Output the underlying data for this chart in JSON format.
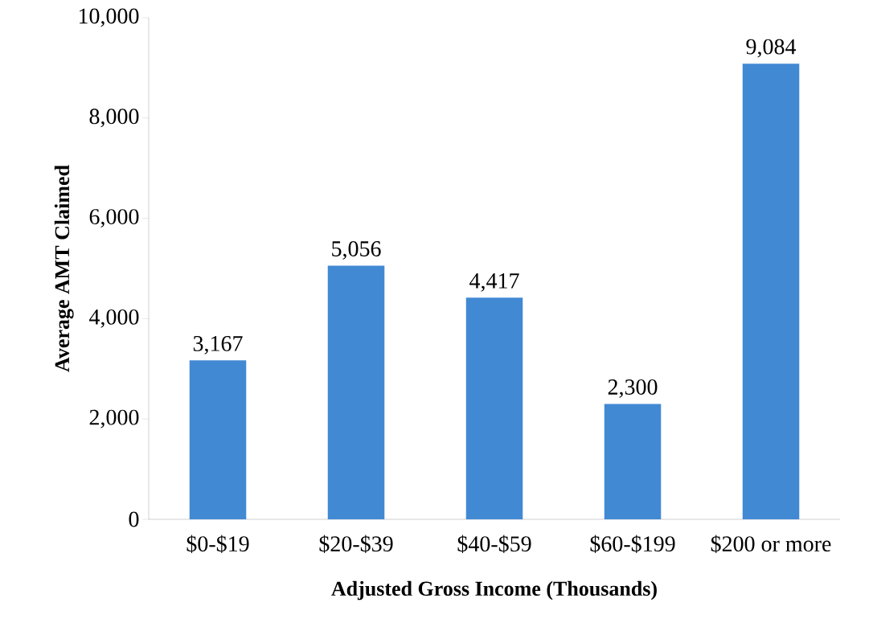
{
  "chart_data": {
    "type": "bar",
    "xlabel": "Adjusted Gross Income (Thousands)",
    "ylabel": "Average AMT Claimed",
    "categories": [
      "$0-$19",
      "$20-$39",
      "$40-$59",
      "$60-$199",
      "$200 or more"
    ],
    "values": [
      3167,
      5056,
      4417,
      2300,
      9084
    ],
    "value_labels": [
      "3,167",
      "5,056",
      "4,417",
      "2,300",
      "9,084"
    ],
    "color": "#4289d4",
    "ylim": [
      0,
      10000
    ],
    "yticks": [
      0,
      {
        "value": 2000,
        "label": "2,000"
      },
      {
        "value": 4000,
        "label": "4,000"
      },
      {
        "value": 6000,
        "label": "6,000"
      },
      {
        "value": 8000,
        "label": "8,000"
      },
      {
        "value": 10000,
        "label": "10,000"
      }
    ]
  }
}
